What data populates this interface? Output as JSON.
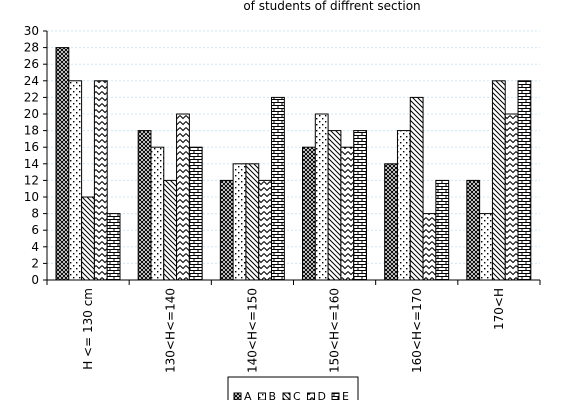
{
  "chart_data": {
    "type": "bar",
    "title": "of students of diffrent section",
    "categories": [
      "H <= 130 cm",
      "130<H<=140",
      "140<H<=150",
      "150<H<=160",
      "160<H<=170",
      "170<H"
    ],
    "series": [
      {
        "name": "A",
        "values": [
          28,
          18,
          12,
          16,
          14,
          12
        ]
      },
      {
        "name": "B",
        "values": [
          24,
          16,
          14,
          20,
          18,
          8
        ]
      },
      {
        "name": "C",
        "values": [
          10,
          12,
          14,
          18,
          22,
          24
        ]
      },
      {
        "name": "D",
        "values": [
          24,
          20,
          12,
          16,
          8,
          20
        ]
      },
      {
        "name": "E",
        "values": [
          8,
          16,
          22,
          18,
          12,
          24
        ]
      }
    ],
    "ylim": [
      0,
      30
    ],
    "yticks": [
      0,
      2,
      4,
      6,
      8,
      10,
      12,
      14,
      16,
      18,
      20,
      22,
      24,
      26,
      28,
      30
    ],
    "grid": true,
    "legend_position": "bottom",
    "colors": {
      "bar_fill": "#ffffff",
      "bar_stroke": "#000000",
      "grid": "#cfe8f5"
    }
  }
}
